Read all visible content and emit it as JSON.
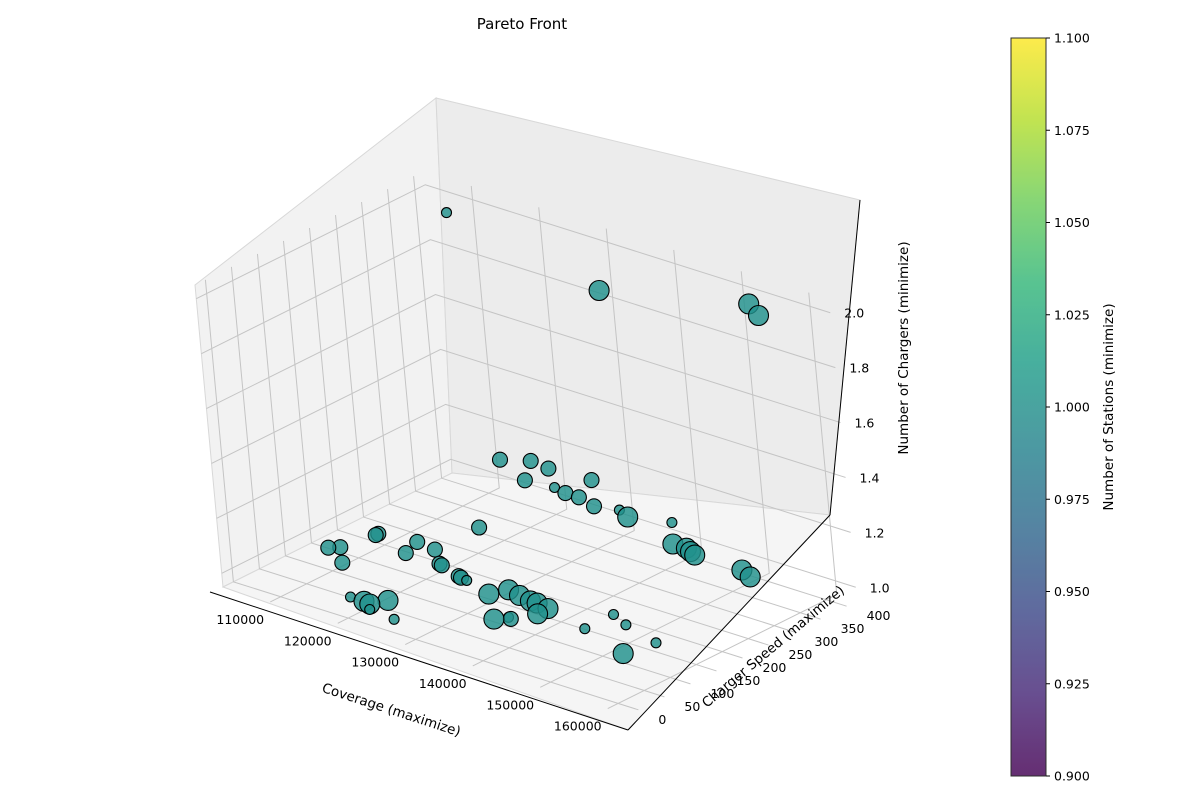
{
  "chart_data": {
    "type": "scatter",
    "projection": "3d",
    "title": "Pareto Front",
    "xlabel": "Coverage (maximize)",
    "ylabel": "Charger Speed (maximize)",
    "zlabel": "Number of Chargers (minimize)",
    "xlim": [
      103000,
      163000
    ],
    "ylim": [
      -20,
      420
    ],
    "zlim": [
      0.95,
      2.05
    ],
    "xticks": [
      "110000",
      "120000",
      "130000",
      "140000",
      "150000",
      "160000"
    ],
    "yticks": [
      "0",
      "50",
      "100",
      "150",
      "200",
      "250",
      "300",
      "350",
      "400"
    ],
    "zticks": [
      "1.0",
      "1.2",
      "1.4",
      "1.6",
      "1.8",
      "2.0"
    ],
    "grid": true,
    "point_color": "#21918c",
    "colorbar": {
      "label": "Number of Stations (minimize)",
      "min": 0.9,
      "max": 1.1,
      "ticks": [
        "0.900",
        "0.925",
        "0.950",
        "0.975",
        "1.000",
        "1.025",
        "1.050",
        "1.075",
        "1.100"
      ],
      "colormap": [
        "#440154",
        "#482878",
        "#3e4989",
        "#31688e",
        "#26828e",
        "#1f9e89",
        "#35b779",
        "#6ece58",
        "#b5de2b",
        "#fde725"
      ]
    },
    "points": [
      {
        "x": 154000,
        "y": 380,
        "z": 2.0,
        "size": "large"
      },
      {
        "x": 157000,
        "y": 360,
        "z": 2.0,
        "size": "large"
      },
      {
        "x": 138000,
        "y": 300,
        "z": 2.0,
        "size": "large"
      },
      {
        "x": 110000,
        "y": 370,
        "z": 2.0,
        "size": "small"
      },
      {
        "x": 121000,
        "y": 350,
        "z": 1.2,
        "size": "medium"
      },
      {
        "x": 124000,
        "y": 345,
        "z": 1.2,
        "size": "medium"
      },
      {
        "x": 130000,
        "y": 350,
        "z": 1.2,
        "size": "medium"
      },
      {
        "x": 118000,
        "y": 330,
        "z": 1.2,
        "size": "medium"
      },
      {
        "x": 124000,
        "y": 300,
        "z": 1.2,
        "size": "medium"
      },
      {
        "x": 128000,
        "y": 305,
        "z": 1.2,
        "size": "small"
      },
      {
        "x": 130000,
        "y": 300,
        "z": 1.2,
        "size": "medium"
      },
      {
        "x": 132000,
        "y": 300,
        "z": 1.2,
        "size": "medium"
      },
      {
        "x": 135000,
        "y": 290,
        "z": 1.2,
        "size": "medium"
      },
      {
        "x": 138000,
        "y": 300,
        "z": 1.2,
        "size": "small"
      },
      {
        "x": 140000,
        "y": 290,
        "z": 1.2,
        "size": "large"
      },
      {
        "x": 145000,
        "y": 310,
        "z": 1.2,
        "size": "small"
      },
      {
        "x": 149000,
        "y": 260,
        "z": 1.2,
        "size": "large"
      },
      {
        "x": 151000,
        "y": 260,
        "z": 1.2,
        "size": "large"
      },
      {
        "x": 152000,
        "y": 255,
        "z": 1.2,
        "size": "large"
      },
      {
        "x": 153000,
        "y": 250,
        "z": 1.2,
        "size": "large"
      },
      {
        "x": 160000,
        "y": 250,
        "z": 1.2,
        "size": "large"
      },
      {
        "x": 162000,
        "y": 240,
        "z": 1.2,
        "size": "large"
      },
      {
        "x": 118000,
        "y": 280,
        "z": 1.0,
        "size": "medium"
      },
      {
        "x": 115000,
        "y": 200,
        "z": 1.0,
        "size": "medium"
      },
      {
        "x": 118000,
        "y": 195,
        "z": 1.0,
        "size": "medium"
      },
      {
        "x": 110000,
        "y": 190,
        "z": 1.0,
        "size": "medium"
      },
      {
        "x": 110000,
        "y": 185,
        "z": 1.0,
        "size": "medium"
      },
      {
        "x": 116000,
        "y": 165,
        "z": 1.0,
        "size": "medium"
      },
      {
        "x": 121000,
        "y": 165,
        "z": 1.0,
        "size": "medium"
      },
      {
        "x": 121500,
        "y": 163,
        "z": 1.0,
        "size": "medium"
      },
      {
        "x": 125000,
        "y": 150,
        "z": 1.0,
        "size": "medium"
      },
      {
        "x": 125500,
        "y": 148,
        "z": 1.0,
        "size": "medium"
      },
      {
        "x": 126500,
        "y": 146,
        "z": 1.0,
        "size": "small"
      },
      {
        "x": 132000,
        "y": 155,
        "z": 1.0,
        "size": "large"
      },
      {
        "x": 134000,
        "y": 150,
        "z": 1.0,
        "size": "large"
      },
      {
        "x": 136000,
        "y": 145,
        "z": 1.0,
        "size": "large"
      },
      {
        "x": 137000,
        "y": 145,
        "z": 1.0,
        "size": "large"
      },
      {
        "x": 139000,
        "y": 140,
        "z": 1.0,
        "size": "large"
      },
      {
        "x": 131000,
        "y": 130,
        "z": 1.0,
        "size": "large"
      },
      {
        "x": 139000,
        "y": 120,
        "z": 1.0,
        "size": "large"
      },
      {
        "x": 146000,
        "y": 175,
        "z": 1.0,
        "size": "small"
      },
      {
        "x": 149000,
        "y": 160,
        "z": 1.0,
        "size": "small"
      },
      {
        "x": 146000,
        "y": 120,
        "z": 1.0,
        "size": "small"
      },
      {
        "x": 155000,
        "y": 140,
        "z": 1.0,
        "size": "small"
      },
      {
        "x": 108000,
        "y": 120,
        "z": 1.0,
        "size": "medium"
      },
      {
        "x": 109000,
        "y": 130,
        "z": 1.0,
        "size": "medium"
      },
      {
        "x": 112000,
        "y": 95,
        "z": 1.0,
        "size": "medium"
      },
      {
        "x": 137000,
        "y": 90,
        "z": 1.0,
        "size": "small"
      },
      {
        "x": 137500,
        "y": 88,
        "z": 1.0,
        "size": "medium"
      },
      {
        "x": 136000,
        "y": 75,
        "z": 1.0,
        "size": "large"
      },
      {
        "x": 154000,
        "y": 90,
        "z": 1.0,
        "size": "large"
      },
      {
        "x": 123000,
        "y": 40,
        "z": 1.0,
        "size": "large"
      },
      {
        "x": 119000,
        "y": 20,
        "z": 1.0,
        "size": "small"
      },
      {
        "x": 121000,
        "y": 20,
        "z": 1.0,
        "size": "large"
      },
      {
        "x": 122000,
        "y": 18,
        "z": 1.0,
        "size": "large"
      },
      {
        "x": 123000,
        "y": 5,
        "z": 1.0,
        "size": "small"
      },
      {
        "x": 127000,
        "y": 0,
        "z": 1.0,
        "size": "small"
      }
    ]
  }
}
